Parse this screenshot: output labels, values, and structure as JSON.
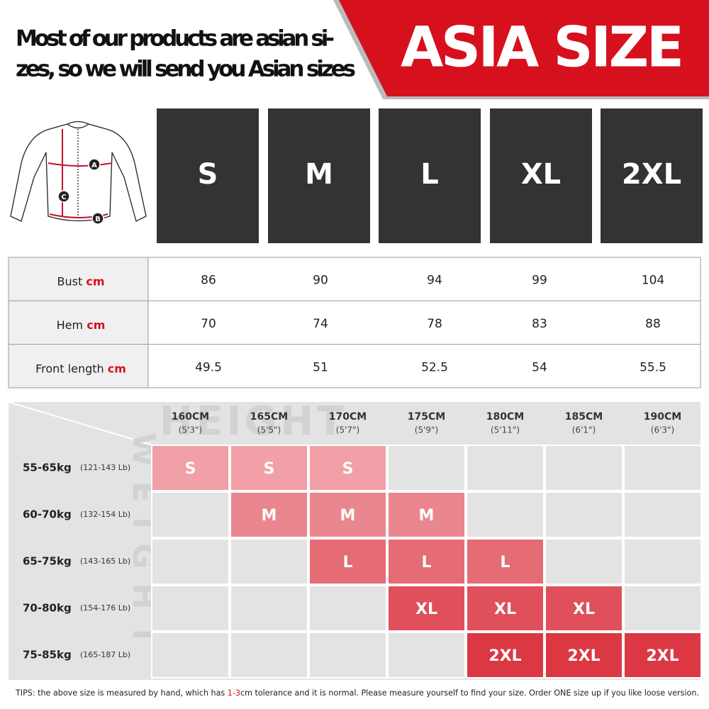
{
  "header": {
    "line1": "Most of our products are asian si-",
    "line2": "zes, so we will send you Asian sizes",
    "badge": "ASIA SIZE"
  },
  "garment": {
    "markers": [
      "A",
      "B",
      "C"
    ]
  },
  "sizes": [
    "S",
    "M",
    "L",
    "XL",
    "2XL"
  ],
  "measure_table": {
    "rows": [
      {
        "label": "Bust",
        "unit": "cm",
        "values": [
          "86",
          "90",
          "94",
          "99",
          "104"
        ]
      },
      {
        "label": "Hem",
        "unit": "cm",
        "values": [
          "70",
          "74",
          "78",
          "83",
          "88"
        ]
      },
      {
        "label": "Front length",
        "unit": "cm",
        "values": [
          "49.5",
          "51",
          "52.5",
          "54",
          "55.5"
        ]
      }
    ]
  },
  "fit_chart": {
    "watermark_top": "HEIGHT",
    "watermark_side": "WEIGHT",
    "heights": [
      {
        "cm": "160CM",
        "ft": "(5'3\")"
      },
      {
        "cm": "165CM",
        "ft": "(5'5\")"
      },
      {
        "cm": "170CM",
        "ft": "(5'7\")"
      },
      {
        "cm": "175CM",
        "ft": "(5'9\")"
      },
      {
        "cm": "180CM",
        "ft": "(5'11\")"
      },
      {
        "cm": "185CM",
        "ft": "(6'1\")"
      },
      {
        "cm": "190CM",
        "ft": "(6'3\")"
      }
    ],
    "rows": [
      {
        "kg": "55-65kg",
        "lb": "(121-143 Lb)",
        "cells": [
          "S",
          "S",
          "S",
          null,
          null,
          null,
          null
        ]
      },
      {
        "kg": "60-70kg",
        "lb": "(132-154 Lb)",
        "cells": [
          null,
          "M",
          "M",
          "M",
          null,
          null,
          null
        ]
      },
      {
        "kg": "65-75kg",
        "lb": "(143-165 Lb)",
        "cells": [
          null,
          null,
          "L",
          "L",
          "L",
          null,
          null
        ]
      },
      {
        "kg": "70-80kg",
        "lb": "(154-176 Lb)",
        "cells": [
          null,
          null,
          null,
          "XL",
          "XL",
          "XL",
          null
        ]
      },
      {
        "kg": "75-85kg",
        "lb": "(165-187 Lb)",
        "cells": [
          null,
          null,
          null,
          null,
          "2XL",
          "2XL",
          "2XL"
        ]
      }
    ]
  },
  "tips": {
    "before": "TIPS:  the above size is measured by hand, which has ",
    "highlight": "1-3",
    "after": "cm tolerance and it is normal. Please measure yourself to find your size. Order ONE size up if you like loose version."
  }
}
